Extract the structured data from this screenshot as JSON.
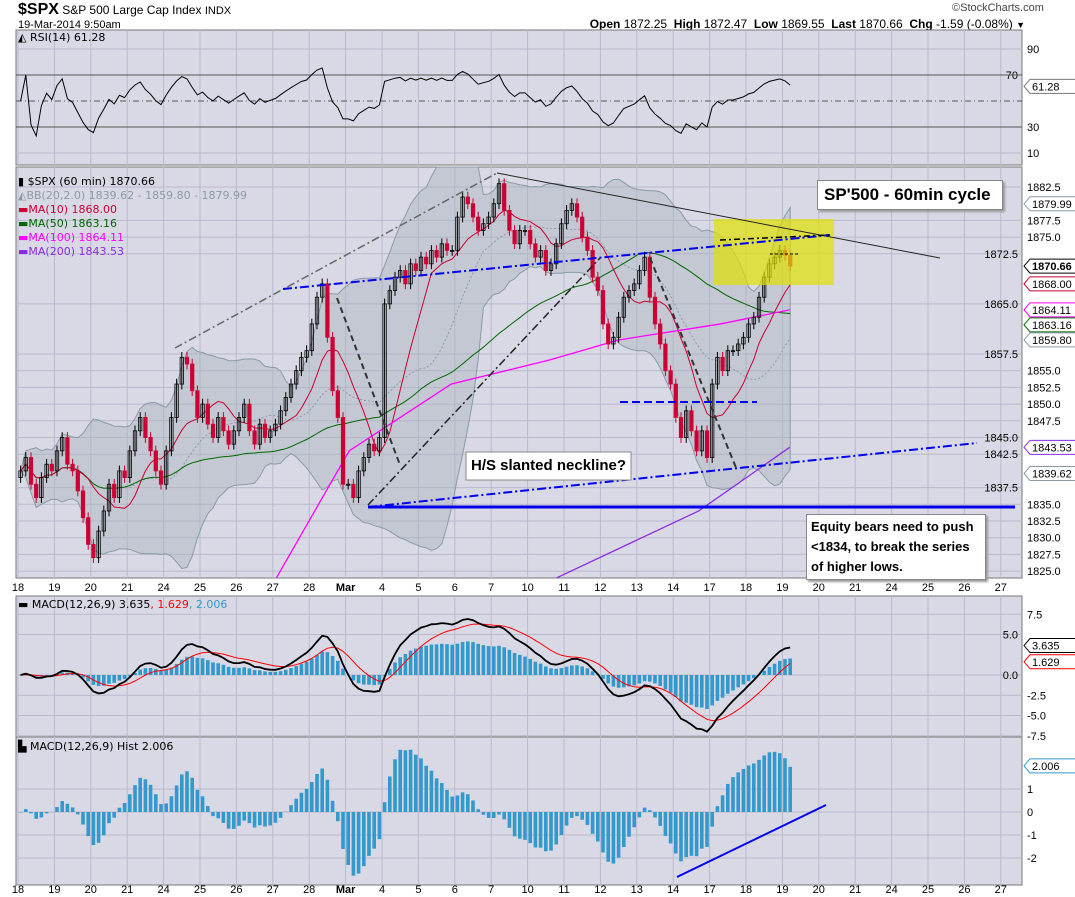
{
  "header": {
    "symbol": "$SPX",
    "name": "S&P 500 Large Cap Index",
    "exchange": "INDX",
    "datetime": "19-Mar-2014 9:50am",
    "copyright": "©StockCharts.com",
    "open_label": "Open",
    "open": "1872.25",
    "high_label": "High",
    "high": "1872.47",
    "low_label": "Low",
    "low": "1869.55",
    "last_label": "Last",
    "last": "1870.66",
    "chg_label": "Chg",
    "chg": "-1.59 (-0.08%)"
  },
  "colors": {
    "panel_bg": "#d9d9e6",
    "grid": "#b9b9cc",
    "up": "#000000",
    "down": "#cc0033",
    "ma10": "#cc0033",
    "ma50": "#006600",
    "ma100": "#ff00ff",
    "ma200": "#8a2be2",
    "bb": "#8a9aa6",
    "macd": "#000000",
    "signal": "#ff0000",
    "hist": "#3399cc",
    "annot_blue": "#0000ee",
    "highlight": "#e0e000"
  },
  "legend": {
    "rsi": "RSI(14) 61.28",
    "price": "$SPX (60 min) 1870.66",
    "bb": "BB(20,2.0) 1839.62 - 1859.80 - 1879.99",
    "ma10": "MA(10) 1868.00",
    "ma50": "MA(50) 1863.16",
    "ma100": "MA(100) 1864.11",
    "ma200": "MA(200) 1843.53",
    "macd": "MACD(12,26,9) 3.635",
    "macd_signal": ", 1.629",
    "macd_hist": ", 2.006",
    "hist": "MACD(12,26,9) Hist 2.006"
  },
  "annotations": {
    "title_box": "SP'500 - 60min cycle",
    "neckline": "H/S slanted neckline?",
    "bears_note": [
      "Equity bears need to push",
      "<1834, to break the series",
      "of higher lows."
    ]
  },
  "chart_data": [
    {
      "type": "candlestick",
      "title": "$SPX (60 min)",
      "x_tick_labels": [
        "18",
        "19",
        "20",
        "21",
        "24",
        "25",
        "26",
        "27",
        "28",
        "Mar",
        "4",
        "5",
        "6",
        "7",
        "10",
        "11",
        "12",
        "13",
        "14",
        "17",
        "18",
        "19",
        "20",
        "21",
        "24",
        "25",
        "26",
        "27"
      ],
      "y_ticks": [
        "1825.0",
        "1827.5",
        "1830.0",
        "1832.5",
        "1835.0",
        "1837.5",
        "1842.5",
        "1845.0",
        "1847.5",
        "1850.0",
        "1852.5",
        "1855.0",
        "1857.5",
        "1865.0",
        "1872.5",
        "1875.0",
        "1877.5",
        "1882.5"
      ],
      "ylim": [
        1822,
        1885
      ],
      "hourly_closes": [
        [
          1840,
          1842,
          1838,
          1836,
          1839,
          1841,
          1840
        ],
        [
          1843,
          1845,
          1841,
          1840,
          1837,
          1833,
          1829
        ],
        [
          1827,
          1831,
          1834,
          1838,
          1836,
          1840,
          1839
        ],
        [
          1843,
          1846,
          1848,
          1845,
          1843,
          1840,
          1838
        ],
        [
          1843,
          1848,
          1853,
          1857,
          1856,
          1852,
          1848
        ],
        [
          1850,
          1847,
          1845,
          1848,
          1846,
          1844,
          1846
        ],
        [
          1848,
          1850,
          1846,
          1844,
          1847,
          1845,
          1846
        ],
        [
          1847,
          1849,
          1851,
          1853,
          1855,
          1857,
          1858
        ],
        [
          1862,
          1866,
          1868,
          1860,
          1852,
          1848,
          1838
        ],
        [
          1838,
          1836,
          1840,
          1842,
          1844,
          1843,
          1845
        ],
        [
          1865,
          1867,
          1869,
          1870,
          1868,
          1871,
          1870
        ],
        [
          1872,
          1871,
          1873,
          1872,
          1874,
          1873,
          1873
        ],
        [
          1878,
          1881,
          1880,
          1878,
          1876,
          1877,
          1878
        ],
        [
          1880,
          1883,
          1879,
          1876,
          1874,
          1876,
          1876
        ],
        [
          1874,
          1872,
          1873,
          1870,
          1871,
          1874,
          1877
        ],
        [
          1879,
          1880,
          1878,
          1875,
          1873,
          1869,
          1867
        ],
        [
          1862,
          1859,
          1860,
          1863,
          1866,
          1867,
          1868
        ],
        [
          1870,
          1872,
          1866,
          1862,
          1859,
          1855,
          1853
        ],
        [
          1848,
          1845,
          1849,
          1846,
          1843,
          1846,
          1842
        ],
        [
          1853,
          1857,
          1855,
          1858,
          1858,
          1859,
          1860
        ],
        [
          1862,
          1863,
          1866,
          1869,
          1871,
          1872,
          1873
        ],
        [
          1872.25,
          1870.66
        ]
      ],
      "ma100_points": [
        [
          7.1,
          1824
        ],
        [
          9.1,
          1843
        ],
        [
          11.9,
          1853
        ],
        [
          14.6,
          1856.6
        ],
        [
          16.5,
          1859.6
        ],
        [
          19.3,
          1862
        ],
        [
          21.2,
          1864.11
        ]
      ],
      "ma200_points": [
        [
          14.8,
          1824
        ],
        [
          18.7,
          1834
        ],
        [
          21.2,
          1843.53
        ]
      ],
      "price_tags": [
        {
          "v": 1879.99,
          "label": "1879.99",
          "c": "#8a9aa6"
        },
        {
          "v": 1870.66,
          "label": "1870.66",
          "c": "#000000"
        },
        {
          "v": 1868.0,
          "label": "1868.00",
          "c": "#cc0033"
        },
        {
          "v": 1864.11,
          "label": "1864.11",
          "c": "#ff00ff"
        },
        {
          "v": 1863.16,
          "label": "1863.16",
          "c": "#006600"
        },
        {
          "v": 1859.8,
          "label": "1859.80",
          "c": "#8a9aa6"
        },
        {
          "v": 1843.53,
          "label": "1843.53",
          "c": "#8a2be2"
        },
        {
          "v": 1839.62,
          "label": "1839.62",
          "c": "#8a9aa6"
        }
      ]
    },
    {
      "type": "line",
      "title": "RSI(14)",
      "ylim": [
        0,
        100
      ],
      "y_ticks": [
        "90",
        "70",
        "30",
        "10"
      ],
      "reference_lines": [
        70,
        50,
        30
      ],
      "tag": "61.28"
    },
    {
      "type": "line",
      "title": "MACD(12,26,9)",
      "ylim": [
        -9,
        9
      ],
      "y_ticks": [
        "7.5",
        "5.0",
        "0.0",
        "-2.5",
        "-5.0",
        "-7.5"
      ],
      "tags": [
        {
          "v": 3.635,
          "label": "3.635",
          "c": "#000000"
        },
        {
          "v": 1.629,
          "label": "1.629",
          "c": "#ff0000"
        }
      ]
    },
    {
      "type": "bar",
      "title": "MACD(12,26,9) Hist",
      "ylim": [
        -3,
        3
      ],
      "y_ticks": [
        "1",
        "0",
        "-1",
        "-2"
      ],
      "tag": "2.006"
    }
  ]
}
